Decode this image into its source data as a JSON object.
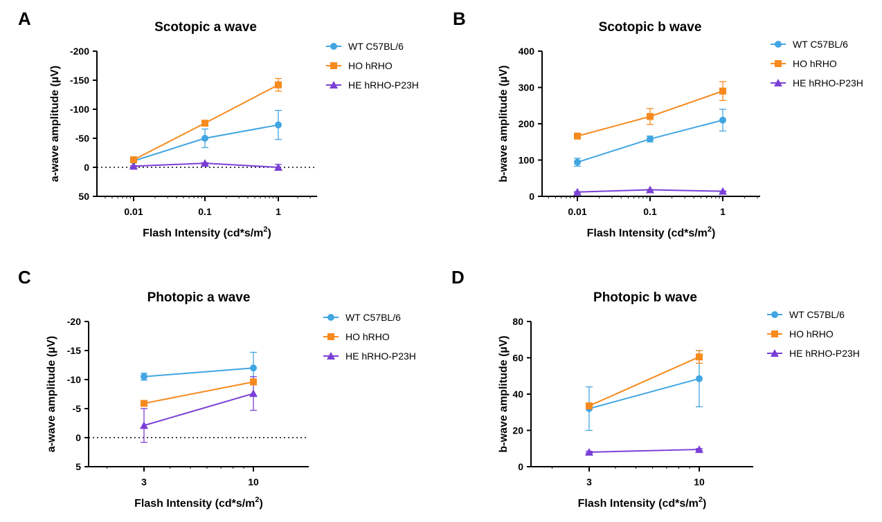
{
  "series_styles": {
    "WT C57BL/6": {
      "color": "#41A5E1",
      "marker": "circle"
    },
    "HO hRHO": {
      "color": "#F68A1E",
      "marker": "square"
    },
    "HE hRHO-P23H": {
      "color": "#7A3FD6",
      "marker": "triangle"
    }
  },
  "chart_data": [
    {
      "panel": "A",
      "type": "line",
      "title": "Scotopic a wave",
      "xlabel": "Flash Intensity (cd*s/m",
      "xlabel_sup": "2",
      "xlabel_end": ")",
      "ylabel": "a-wave amplitude (µV)",
      "x_scale": "log",
      "x": [
        0.01,
        0.1,
        1
      ],
      "x_tick_labels": [
        "0.01",
        "0.1",
        "1"
      ],
      "ylim": [
        50,
        -200
      ],
      "y_inverted": true,
      "y_ticks": [
        -200,
        -150,
        -100,
        -50,
        0,
        50
      ],
      "y_tick_labels": [
        "-200",
        "-150",
        "-100",
        "-50",
        "0",
        "50"
      ],
      "zero_line": "dotted",
      "legend_position": "right",
      "series": [
        {
          "name": "WT C57BL/6",
          "values": [
            -11,
            -50,
            -73
          ],
          "errors": [
            2,
            16,
            25
          ]
        },
        {
          "name": "HO hRHO",
          "values": [
            -13,
            -76,
            -142
          ],
          "errors": [
            2,
            4,
            11
          ]
        },
        {
          "name": "HE hRHO-P23H",
          "values": [
            -2,
            -7,
            0
          ],
          "errors": [
            1,
            1,
            5
          ]
        }
      ]
    },
    {
      "panel": "B",
      "type": "line",
      "title": "Scotopic b wave",
      "xlabel": "Flash Intensity (cd*s/m",
      "xlabel_sup": "2",
      "xlabel_end": ")",
      "ylabel": "b-wave amplitude (µV)",
      "x_scale": "log",
      "x": [
        0.01,
        0.1,
        1
      ],
      "x_tick_labels": [
        "0.01",
        "0.1",
        "1"
      ],
      "ylim": [
        0,
        400
      ],
      "y_inverted": false,
      "y_ticks": [
        0,
        100,
        200,
        300,
        400
      ],
      "y_tick_labels": [
        "0",
        "100",
        "200",
        "300",
        "400"
      ],
      "zero_line": "none",
      "legend_position": "right",
      "series": [
        {
          "name": "WT C57BL/6",
          "values": [
            94,
            158,
            210
          ],
          "errors": [
            11,
            8,
            30
          ]
        },
        {
          "name": "HO hRHO",
          "values": [
            166,
            220,
            290
          ],
          "errors": [
            4,
            22,
            26
          ]
        },
        {
          "name": "HE hRHO-P23H",
          "values": [
            12,
            18,
            14
          ],
          "errors": [
            1,
            1,
            1
          ]
        }
      ]
    },
    {
      "panel": "C",
      "type": "line",
      "title": "Photopic a wave",
      "xlabel": "Flash Intensity (cd*s/m",
      "xlabel_sup": "2",
      "xlabel_end": ")",
      "ylabel": "a-wave amplitude (µV)",
      "x_scale": "log",
      "x": [
        3,
        10
      ],
      "x_tick_labels": [
        "3",
        "10"
      ],
      "ylim": [
        5,
        -20
      ],
      "y_inverted": true,
      "y_ticks": [
        -20,
        -15,
        -10,
        -5,
        0,
        5
      ],
      "y_tick_labels": [
        "-20",
        "-15",
        "-10",
        "-5",
        "0",
        "5"
      ],
      "zero_line": "dotted",
      "legend_position": "right",
      "series": [
        {
          "name": "WT C57BL/6",
          "values": [
            -10.5,
            -12
          ],
          "errors": [
            0.6,
            2.7
          ]
        },
        {
          "name": "HO hRHO",
          "values": [
            -5.9,
            -9.6
          ],
          "errors": [
            0.3,
            0.5
          ]
        },
        {
          "name": "HE hRHO-P23H",
          "values": [
            -2.1,
            -7.6
          ],
          "errors": [
            2.9,
            2.9
          ]
        }
      ]
    },
    {
      "panel": "D",
      "type": "line",
      "title": "Photopic b wave",
      "xlabel": "Flash Intensity (cd*s/m",
      "xlabel_sup": "2",
      "xlabel_end": ")",
      "ylabel": "b-wave amplitude (µV)",
      "x_scale": "log",
      "x": [
        3,
        10
      ],
      "x_tick_labels": [
        "3",
        "10"
      ],
      "ylim": [
        0,
        80
      ],
      "y_inverted": false,
      "y_ticks": [
        0,
        20,
        40,
        60,
        80
      ],
      "y_tick_labels": [
        "0",
        "20",
        "40",
        "60",
        "80"
      ],
      "zero_line": "none",
      "legend_position": "right",
      "series": [
        {
          "name": "WT C57BL/6",
          "values": [
            32,
            48.5
          ],
          "errors": [
            12,
            15.5
          ]
        },
        {
          "name": "HO hRHO",
          "values": [
            33.5,
            60.5
          ],
          "errors": [
            1,
            3.5
          ]
        },
        {
          "name": "HE hRHO-P23H",
          "values": [
            8,
            9.5
          ],
          "errors": [
            0.5,
            0.5
          ]
        }
      ]
    }
  ]
}
